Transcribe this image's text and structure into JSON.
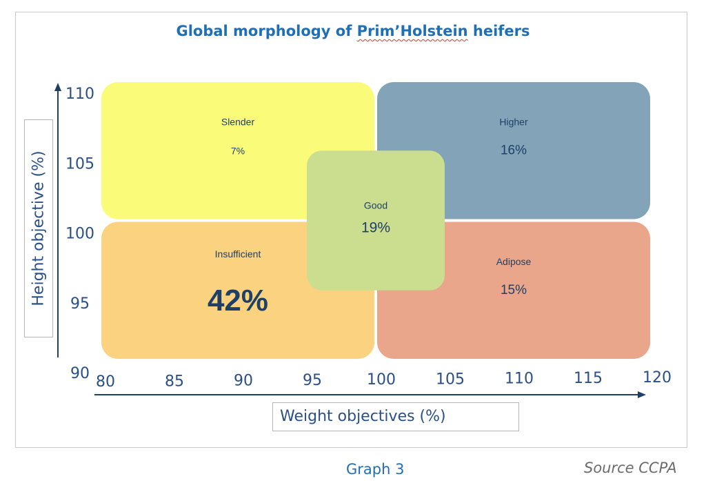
{
  "chart_data": {
    "type": "diagram",
    "title_prefix": "Global morphology of ",
    "title_highlight": "Prim’Holstein",
    "title_suffix": " heifers",
    "xlabel": "Weight objectives (%)",
    "ylabel": "Height objective (%)",
    "xlim": [
      80,
      120
    ],
    "ylim": [
      90,
      110
    ],
    "x_ticks": [
      80,
      85,
      90,
      95,
      100,
      105,
      110,
      115,
      120
    ],
    "y_ticks": [
      90,
      95,
      100,
      105,
      110
    ],
    "regions": [
      {
        "name": "Slender",
        "value": "7%",
        "x": [
          80,
          100
        ],
        "y": [
          100,
          110
        ],
        "color": "#fbfb7a"
      },
      {
        "name": "Higher",
        "value": "16%",
        "x": [
          100,
          120
        ],
        "y": [
          100,
          110
        ],
        "color": "#83a3b8"
      },
      {
        "name": "Insufficient",
        "value": "42%",
        "x": [
          80,
          100
        ],
        "y": [
          90,
          100
        ],
        "color": "#fbd27f"
      },
      {
        "name": "Adipose",
        "value": "15%",
        "x": [
          100,
          120
        ],
        "y": [
          90,
          100
        ],
        "color": "#e9a68a"
      },
      {
        "name": "Good",
        "value": "19%",
        "x": [
          95,
          105
        ],
        "y": [
          95,
          105
        ],
        "color": "#cbdd8f"
      }
    ]
  },
  "captions": {
    "graph": "Graph 3",
    "source": "Source CCPA"
  }
}
